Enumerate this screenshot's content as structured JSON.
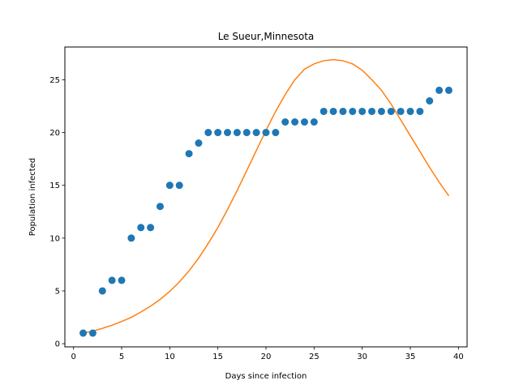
{
  "chart_data": {
    "type": "scatter",
    "title": "Le Sueur,Minnesota",
    "xlabel": "Days since infection",
    "ylabel": "Population infected",
    "xlim": [
      -0.9,
      40.9
    ],
    "ylim": [
      -0.3,
      28.1
    ],
    "xticks": [
      0,
      5,
      10,
      15,
      20,
      25,
      30,
      35,
      40
    ],
    "yticks": [
      0,
      5,
      10,
      15,
      20,
      25
    ],
    "grid": false,
    "series": [
      {
        "kind": "scatter",
        "color": "#1f77b4",
        "x": [
          1,
          2,
          3,
          4,
          5,
          6,
          7,
          8,
          9,
          10,
          11,
          12,
          13,
          14,
          15,
          16,
          17,
          18,
          19,
          20,
          21,
          22,
          23,
          24,
          25,
          26,
          27,
          28,
          29,
          30,
          31,
          32,
          33,
          34,
          35,
          36,
          37,
          38,
          39
        ],
        "y": [
          1,
          1,
          5,
          6,
          6,
          10,
          11,
          11,
          13,
          15,
          15,
          18,
          19,
          20,
          20,
          20,
          20,
          20,
          20,
          20,
          20,
          21,
          21,
          21,
          21,
          22,
          22,
          22,
          22,
          22,
          22,
          22,
          22,
          22,
          22,
          22,
          23,
          24,
          24
        ]
      },
      {
        "kind": "line",
        "color": "#ff7f0e",
        "x": [
          1,
          2,
          3,
          4,
          5,
          6,
          7,
          8,
          9,
          10,
          11,
          12,
          13,
          14,
          15,
          16,
          17,
          18,
          19,
          20,
          21,
          22,
          23,
          24,
          25,
          26,
          27,
          28,
          29,
          30,
          31,
          32,
          33,
          34,
          35,
          36,
          37,
          38,
          39
        ],
        "y": [
          1.0,
          1.2,
          1.45,
          1.75,
          2.1,
          2.5,
          3.0,
          3.55,
          4.2,
          4.95,
          5.85,
          6.9,
          8.1,
          9.5,
          11.0,
          12.7,
          14.5,
          16.4,
          18.3,
          20.2,
          22.0,
          23.6,
          25.0,
          26.0,
          26.5,
          26.8,
          26.9,
          26.8,
          26.5,
          25.9,
          25.0,
          24.0,
          22.7,
          21.2,
          19.7,
          18.2,
          16.7,
          15.3,
          14.0
        ]
      }
    ]
  }
}
